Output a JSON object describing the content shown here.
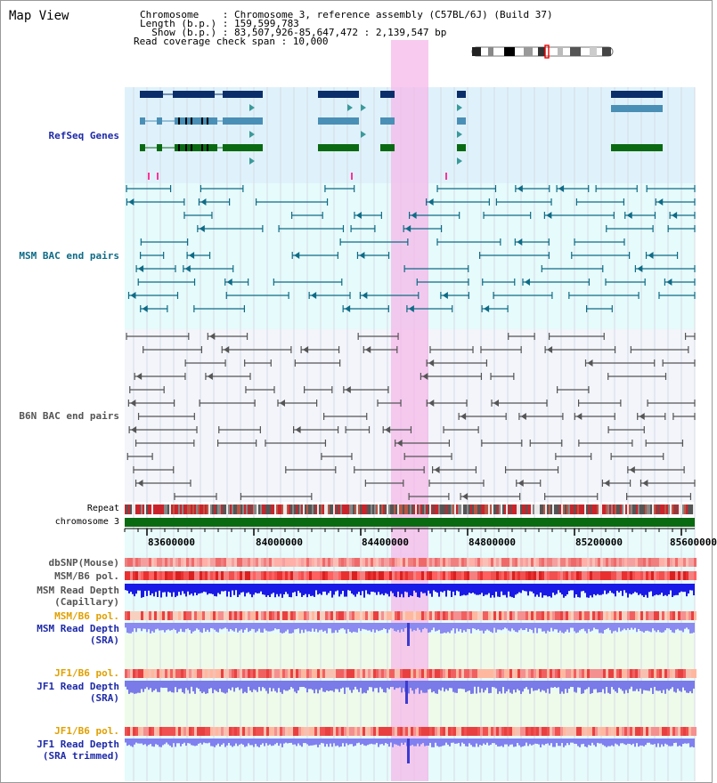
{
  "header": {
    "title": "Map View",
    "chromosome_line": "Chromosome    : Chromosome 3, reference assembly (C57BL/6J) (Build 37)",
    "length_line": "Length (b.p.) : 159,599,783",
    "show_line": "  Show (b.p.) : 83,507,926-85,647,472 : 2,139,547 bp",
    "coverage_line": "Read coverage check span : 10,000"
  },
  "tracks": {
    "refseq": "RefSeq Genes",
    "msm_bac": "MSM BAC end pairs",
    "b6n_bac": "B6N BAC end pairs",
    "repeat": "Repeat",
    "chromosome": "chromosome 3",
    "dbsnp": "dbSNP(Mouse)",
    "msm_b6_pol_1": "MSM/B6 pol.",
    "msm_read_depth_cap_1": "MSM Read Depth",
    "msm_read_depth_cap_2": "(Capillary)",
    "msm_b6_pol_2": "MSM/B6 pol.",
    "msm_read_depth_sra_1": "MSM Read Depth",
    "msm_read_depth_sra_2": "(SRA)",
    "jf1_b6_pol_1": "JF1/B6 pol.",
    "jf1_read_depth_sra_1": "JF1 Read Depth",
    "jf1_read_depth_sra_2": "(SRA)",
    "jf1_b6_pol_2": "JF1/B6 pol.",
    "jf1_read_depth_trim_1": "JF1 Read Depth",
    "jf1_read_depth_trim_2": "(SRA trimmed)"
  },
  "ruler": {
    "ticks": [
      "83600000",
      "84000000",
      "84400000",
      "84800000",
      "85200000",
      "85600000"
    ]
  },
  "colors": {
    "refseq_label": "#1e2aa8",
    "msm_label": "#0e6b86",
    "b6n_label": "#555555",
    "pol_orange": "#e0a000",
    "depth_blue": "#1a1acc",
    "highlight": "#f7c8ee"
  }
}
